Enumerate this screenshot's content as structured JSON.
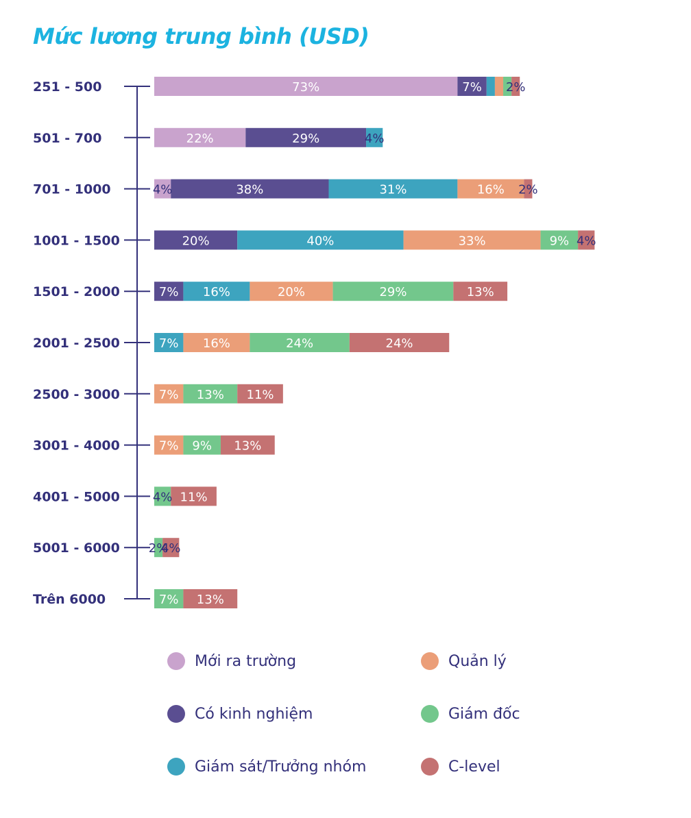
{
  "chart_data": {
    "type": "bar",
    "orientation": "horizontal",
    "stacked": true,
    "title": "Mức lương trung bình (USD)",
    "categories": [
      "251 - 500",
      "501 - 700",
      "701 - 1000",
      "1001 - 1500",
      "1501 - 2000",
      "2001 - 2500",
      "2500 - 3000",
      "3001 - 4000",
      "4001 - 5000",
      "5001 - 6000",
      "Trên 6000"
    ],
    "series": [
      {
        "name": "Mới ra trường",
        "color": "#c9a3cd",
        "values": [
          73,
          22,
          4,
          0,
          0,
          0,
          0,
          0,
          0,
          0,
          0
        ],
        "labels": [
          "73%",
          "22%",
          "4%",
          "",
          "",
          "",
          "",
          "",
          "",
          "",
          ""
        ]
      },
      {
        "name": "Có kinh nghiệm",
        "color": "#5a4e91",
        "values": [
          7,
          29,
          38,
          20,
          7,
          0,
          0,
          0,
          0,
          0,
          0
        ],
        "labels": [
          "7%",
          "29%",
          "38%",
          "20%",
          "7%",
          "",
          "",
          "",
          "",
          "",
          ""
        ]
      },
      {
        "name": "Giám sát/Trưởng nhóm",
        "color": "#3da4bf",
        "values": [
          2,
          4,
          31,
          40,
          16,
          7,
          0,
          0,
          0,
          0,
          0
        ],
        "labels": [
          "",
          "4%",
          "31%",
          "40%",
          "16%",
          "7%",
          "",
          "",
          "",
          "",
          ""
        ]
      },
      {
        "name": "Quản lý",
        "color": "#eb9e78",
        "values": [
          2,
          0,
          16,
          33,
          20,
          16,
          7,
          7,
          0,
          0,
          0
        ],
        "labels": [
          "",
          "",
          "16%",
          "33%",
          "20%",
          "16%",
          "7%",
          "7%",
          "",
          "",
          ""
        ]
      },
      {
        "name": "Giám đốc",
        "color": "#73c78c",
        "values": [
          2,
          0,
          0,
          9,
          29,
          24,
          13,
          9,
          4,
          2,
          7
        ],
        "labels": [
          "",
          "",
          "",
          "9%",
          "29%",
          "24%",
          "13%",
          "9%",
          "4%",
          "2%",
          "7%"
        ]
      },
      {
        "name": "C-level",
        "color": "#c47272",
        "values": [
          2,
          0,
          2,
          4,
          13,
          24,
          11,
          13,
          11,
          4,
          13
        ],
        "labels": [
          "2%",
          "",
          "2%",
          "4%",
          "13%",
          "24%",
          "11%",
          "13%",
          "11%",
          "4%",
          "13%"
        ]
      }
    ],
    "legend_position": "bottom",
    "grid": false
  }
}
